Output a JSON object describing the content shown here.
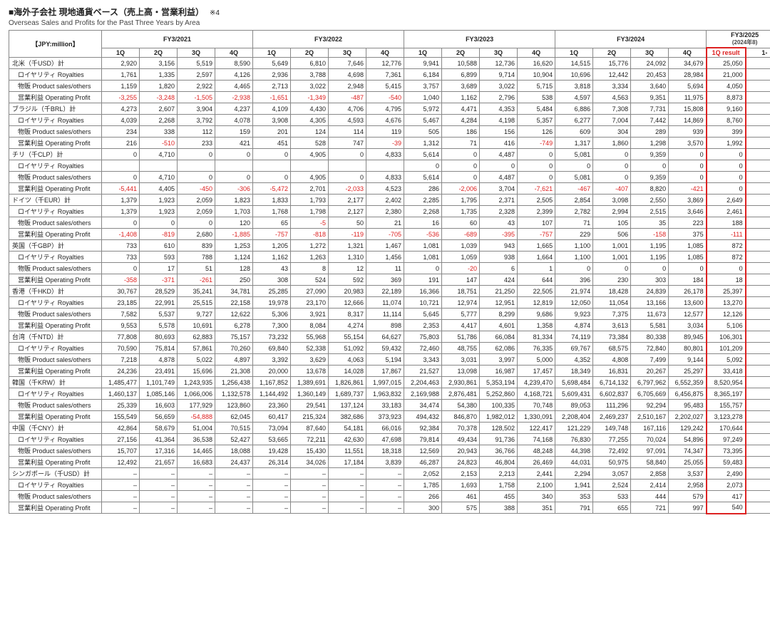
{
  "title_jp": "■海外子会社 現地通貨ベース（売上高・営業利益）",
  "title_note": "※4",
  "title_en": "Overseas Sales and Profits for the Past Three Years by Area",
  "unit_label": "【JPY:million】",
  "fy_headers": [
    "FY3/2021",
    "FY3/2022",
    "FY3/2023",
    "FY3/2024",
    "FY3/2025"
  ],
  "fy25_note": "(2024年8)",
  "q_headers": [
    "1Q",
    "2Q",
    "3Q",
    "4Q"
  ],
  "result_header": "1Q result",
  "extra_header": "1-",
  "row_labels": {
    "na_total": "北米（千USD）計",
    "royalties": "ロイヤリティ Royalties",
    "product": "物販 Product sales/others",
    "op": "営業利益 Operating Profit",
    "brazil_total": "ブラジル（千BRL）計",
    "chile_total": "チリ（千CLP）計",
    "germany_total": "ドイツ（千EUR）計",
    "uk_total": "英国（千GBP）計",
    "hk_total": "香港（千HKD）計",
    "tw_total": "台湾（千NTD）計",
    "kr_total": "韓国（千KRW）計",
    "cn_total": "中国（千CNY）計",
    "sg_total": "シンガポール（千USD）計"
  },
  "rows": [
    {
      "key": "na_total",
      "type": "label",
      "v": [
        "2,920",
        "3,156",
        "5,519",
        "8,590",
        "5,649",
        "6,810",
        "7,646",
        "12,776",
        "9,941",
        "10,588",
        "12,736",
        "16,620",
        "14,515",
        "15,776",
        "24,092",
        "34,679",
        "25,050"
      ]
    },
    {
      "key": "royalties",
      "type": "sub",
      "v": [
        "1,761",
        "1,335",
        "2,597",
        "4,126",
        "2,936",
        "3,788",
        "4,698",
        "7,361",
        "6,184",
        "6,899",
        "9,714",
        "10,904",
        "10,696",
        "12,442",
        "20,453",
        "28,984",
        "21,000"
      ]
    },
    {
      "key": "product",
      "type": "sub",
      "v": [
        "1,159",
        "1,820",
        "2,922",
        "4,465",
        "2,713",
        "3,022",
        "2,948",
        "5,415",
        "3,757",
        "3,689",
        "3,022",
        "5,715",
        "3,818",
        "3,334",
        "3,640",
        "5,694",
        "4,050"
      ]
    },
    {
      "key": "op",
      "type": "sub",
      "v": [
        "-3,255",
        "-3,248",
        "-1,505",
        "-2,938",
        "-1,651",
        "-1,349",
        "-487",
        "-540",
        "1,040",
        "1,162",
        "2,796",
        "538",
        "4,597",
        "4,563",
        "9,351",
        "11,975",
        "8,873"
      ]
    },
    {
      "key": "brazil_total",
      "type": "label",
      "v": [
        "4,273",
        "2,607",
        "3,904",
        "4,237",
        "4,109",
        "4,430",
        "4,706",
        "4,795",
        "5,972",
        "4,471",
        "4,353",
        "5,484",
        "6,886",
        "7,308",
        "7,731",
        "15,808",
        "9,160"
      ]
    },
    {
      "key": "royalties",
      "type": "sub",
      "v": [
        "4,039",
        "2,268",
        "3,792",
        "4,078",
        "3,908",
        "4,305",
        "4,593",
        "4,676",
        "5,467",
        "4,284",
        "4,198",
        "5,357",
        "6,277",
        "7,004",
        "7,442",
        "14,869",
        "8,760"
      ]
    },
    {
      "key": "product",
      "type": "sub",
      "v": [
        "234",
        "338",
        "112",
        "159",
        "201",
        "124",
        "114",
        "119",
        "505",
        "186",
        "156",
        "126",
        "609",
        "304",
        "289",
        "939",
        "399"
      ]
    },
    {
      "key": "op",
      "type": "sub",
      "v": [
        "216",
        "-510",
        "233",
        "421",
        "451",
        "528",
        "747",
        "-39",
        "1,312",
        "71",
        "416",
        "-749",
        "1,317",
        "1,860",
        "1,298",
        "3,570",
        "1,992"
      ]
    },
    {
      "key": "chile_total",
      "type": "label",
      "v": [
        "0",
        "4,710",
        "0",
        "0",
        "0",
        "4,905",
        "0",
        "4,833",
        "5,614",
        "0",
        "4,487",
        "0",
        "5,081",
        "0",
        "9,359",
        "0",
        "0"
      ]
    },
    {
      "key": "royalties",
      "type": "sub",
      "v": [
        "",
        "",
        "",
        "",
        "",
        "",
        "",
        "",
        "0",
        "0",
        "0",
        "0",
        "0",
        "0",
        "0",
        "0",
        "0"
      ]
    },
    {
      "key": "product",
      "type": "sub",
      "v": [
        "0",
        "4,710",
        "0",
        "0",
        "0",
        "4,905",
        "0",
        "4,833",
        "5,614",
        "0",
        "4,487",
        "0",
        "5,081",
        "0",
        "9,359",
        "0",
        "0"
      ]
    },
    {
      "key": "op",
      "type": "sub",
      "v": [
        "-5,441",
        "4,405",
        "-450",
        "-306",
        "-5,472",
        "2,701",
        "-2,033",
        "4,523",
        "286",
        "-2,006",
        "3,704",
        "-7,621",
        "-467",
        "-407",
        "8,820",
        "-421",
        "0"
      ]
    },
    {
      "key": "germany_total",
      "type": "label",
      "v": [
        "1,379",
        "1,923",
        "2,059",
        "1,823",
        "1,833",
        "1,793",
        "2,177",
        "2,402",
        "2,285",
        "1,795",
        "2,371",
        "2,505",
        "2,854",
        "3,098",
        "2,550",
        "3,869",
        "2,649"
      ]
    },
    {
      "key": "royalties",
      "type": "sub",
      "v": [
        "1,379",
        "1,923",
        "2,059",
        "1,703",
        "1,768",
        "1,798",
        "2,127",
        "2,380",
        "2,268",
        "1,735",
        "2,328",
        "2,399",
        "2,782",
        "2,994",
        "2,515",
        "3,646",
        "2,461"
      ]
    },
    {
      "key": "product",
      "type": "sub",
      "v": [
        "0",
        "0",
        "0",
        "120",
        "65",
        "-5",
        "50",
        "21",
        "16",
        "60",
        "43",
        "107",
        "71",
        "105",
        "35",
        "223",
        "188"
      ]
    },
    {
      "key": "op",
      "type": "sub",
      "v": [
        "-1,408",
        "-819",
        "2,680",
        "-1,885",
        "-757",
        "-818",
        "-119",
        "-705",
        "-536",
        "-689",
        "-395",
        "-757",
        "229",
        "506",
        "-158",
        "375",
        "-111"
      ]
    },
    {
      "key": "uk_total",
      "type": "label",
      "v": [
        "733",
        "610",
        "839",
        "1,253",
        "1,205",
        "1,272",
        "1,321",
        "1,467",
        "1,081",
        "1,039",
        "943",
        "1,665",
        "1,100",
        "1,001",
        "1,195",
        "1,085",
        "872"
      ]
    },
    {
      "key": "royalties",
      "type": "sub",
      "v": [
        "733",
        "593",
        "788",
        "1,124",
        "1,162",
        "1,263",
        "1,310",
        "1,456",
        "1,081",
        "1,059",
        "938",
        "1,664",
        "1,100",
        "1,001",
        "1,195",
        "1,085",
        "872"
      ]
    },
    {
      "key": "product",
      "type": "sub",
      "v": [
        "0",
        "17",
        "51",
        "128",
        "43",
        "8",
        "12",
        "11",
        "0",
        "-20",
        "6",
        "1",
        "0",
        "0",
        "0",
        "0",
        "0"
      ]
    },
    {
      "key": "op",
      "type": "sub",
      "v": [
        "-358",
        "-371",
        "-261",
        "250",
        "308",
        "524",
        "592",
        "369",
        "191",
        "147",
        "424",
        "644",
        "396",
        "230",
        "303",
        "184",
        "18"
      ]
    },
    {
      "key": "hk_total",
      "type": "label",
      "v": [
        "30,767",
        "28,529",
        "35,241",
        "34,781",
        "25,285",
        "27,090",
        "20,983",
        "22,189",
        "16,366",
        "18,751",
        "21,250",
        "22,505",
        "21,974",
        "18,428",
        "24,839",
        "26,178",
        "25,397"
      ]
    },
    {
      "key": "royalties",
      "type": "sub",
      "v": [
        "23,185",
        "22,991",
        "25,515",
        "22,158",
        "19,978",
        "23,170",
        "12,666",
        "11,074",
        "10,721",
        "12,974",
        "12,951",
        "12,819",
        "12,050",
        "11,054",
        "13,166",
        "13,600",
        "13,270"
      ]
    },
    {
      "key": "product",
      "type": "sub",
      "v": [
        "7,582",
        "5,537",
        "9,727",
        "12,622",
        "5,306",
        "3,921",
        "8,317",
        "11,114",
        "5,645",
        "5,777",
        "8,299",
        "9,686",
        "9,923",
        "7,375",
        "11,673",
        "12,577",
        "12,126"
      ]
    },
    {
      "key": "op",
      "type": "sub",
      "v": [
        "9,553",
        "5,578",
        "10,691",
        "6,278",
        "7,300",
        "8,084",
        "4,274",
        "898",
        "2,353",
        "4,417",
        "4,601",
        "1,358",
        "4,874",
        "3,613",
        "5,581",
        "3,034",
        "5,106"
      ]
    },
    {
      "key": "tw_total",
      "type": "label",
      "v": [
        "77,808",
        "80,693",
        "62,883",
        "75,157",
        "73,232",
        "55,968",
        "55,154",
        "64,627",
        "75,803",
        "51,786",
        "66,084",
        "81,334",
        "74,119",
        "73,384",
        "80,338",
        "89,945",
        "106,301"
      ]
    },
    {
      "key": "royalties",
      "type": "sub",
      "v": [
        "70,590",
        "75,814",
        "57,861",
        "70,260",
        "69,840",
        "52,338",
        "51,092",
        "59,432",
        "72,460",
        "48,755",
        "62,086",
        "76,335",
        "69,767",
        "68,575",
        "72,840",
        "80,801",
        "101,209"
      ]
    },
    {
      "key": "product",
      "type": "sub",
      "v": [
        "7,218",
        "4,878",
        "5,022",
        "4,897",
        "3,392",
        "3,629",
        "4,063",
        "5,194",
        "3,343",
        "3,031",
        "3,997",
        "5,000",
        "4,352",
        "4,808",
        "7,499",
        "9,144",
        "5,092"
      ]
    },
    {
      "key": "op",
      "type": "sub",
      "v": [
        "24,236",
        "23,491",
        "15,696",
        "21,308",
        "20,000",
        "13,678",
        "14,028",
        "17,867",
        "21,527",
        "13,098",
        "16,987",
        "17,457",
        "18,349",
        "16,831",
        "20,267",
        "25,297",
        "33,418"
      ]
    },
    {
      "key": "kr_total",
      "type": "label",
      "v": [
        "1,485,477",
        "1,101,749",
        "1,243,935",
        "1,256,438",
        "1,167,852",
        "1,389,691",
        "1,826,861",
        "1,997,015",
        "2,204,463",
        "2,930,861",
        "5,353,194",
        "4,239,470",
        "5,698,484",
        "6,714,132",
        "6,797,962",
        "6,552,359",
        "8,520,954"
      ]
    },
    {
      "key": "royalties",
      "type": "sub",
      "v": [
        "1,460,137",
        "1,085,146",
        "1,066,006",
        "1,132,578",
        "1,144,492",
        "1,360,149",
        "1,689,737",
        "1,963,832",
        "2,169,988",
        "2,876,481",
        "5,252,860",
        "4,168,721",
        "5,609,431",
        "6,602,837",
        "6,705,669",
        "6,456,875",
        "8,365,197"
      ]
    },
    {
      "key": "product",
      "type": "sub",
      "v": [
        "25,339",
        "16,603",
        "177,929",
        "123,860",
        "23,360",
        "29,541",
        "137,124",
        "33,183",
        "34,474",
        "54,380",
        "100,335",
        "70,748",
        "89,053",
        "111,296",
        "92,294",
        "95,483",
        "155,757"
      ]
    },
    {
      "key": "op",
      "type": "sub",
      "v": [
        "155,549",
        "56,659",
        "-54,888",
        "62,045",
        "60,417",
        "215,324",
        "382,686",
        "373,923",
        "494,432",
        "846,870",
        "1,982,012",
        "1,330,091",
        "2,208,404",
        "2,469,237",
        "2,510,167",
        "2,202,027",
        "3,123,278"
      ]
    },
    {
      "key": "cn_total",
      "type": "label",
      "v": [
        "42,864",
        "58,679",
        "51,004",
        "70,515",
        "73,094",
        "87,640",
        "54,181",
        "66,016",
        "92,384",
        "70,378",
        "128,502",
        "122,417",
        "121,229",
        "149,748",
        "167,116",
        "129,242",
        "170,644"
      ]
    },
    {
      "key": "royalties",
      "type": "sub",
      "v": [
        "27,156",
        "41,364",
        "36,538",
        "52,427",
        "53,665",
        "72,211",
        "42,630",
        "47,698",
        "79,814",
        "49,434",
        "91,736",
        "74,168",
        "76,830",
        "77,255",
        "70,024",
        "54,896",
        "97,249"
      ]
    },
    {
      "key": "product",
      "type": "sub",
      "v": [
        "15,707",
        "17,316",
        "14,465",
        "18,088",
        "19,428",
        "15,430",
        "11,551",
        "18,318",
        "12,569",
        "20,943",
        "36,766",
        "48,248",
        "44,398",
        "72,492",
        "97,091",
        "74,347",
        "73,395"
      ]
    },
    {
      "key": "op",
      "type": "sub",
      "v": [
        "12,492",
        "21,657",
        "16,683",
        "24,437",
        "26,314",
        "34,026",
        "17,184",
        "3,839",
        "46,287",
        "24,823",
        "46,804",
        "26,469",
        "44,031",
        "50,975",
        "58,840",
        "25,055",
        "59,483"
      ]
    },
    {
      "key": "sg_total",
      "type": "label",
      "v": [
        "–",
        "–",
        "–",
        "–",
        "–",
        "–",
        "–",
        "–",
        "2,052",
        "2,153",
        "2,213",
        "2,441",
        "2,294",
        "3,057",
        "2,858",
        "3,537",
        "2,490"
      ]
    },
    {
      "key": "royalties",
      "type": "sub",
      "v": [
        "–",
        "–",
        "–",
        "–",
        "–",
        "–",
        "–",
        "–",
        "1,785",
        "1,693",
        "1,758",
        "2,100",
        "1,941",
        "2,524",
        "2,414",
        "2,958",
        "2,073"
      ]
    },
    {
      "key": "product",
      "type": "sub",
      "v": [
        "–",
        "–",
        "–",
        "–",
        "–",
        "–",
        "–",
        "–",
        "266",
        "461",
        "455",
        "340",
        "353",
        "533",
        "444",
        "579",
        "417"
      ]
    },
    {
      "key": "op",
      "type": "sub",
      "v": [
        "–",
        "–",
        "–",
        "–",
        "–",
        "–",
        "–",
        "–",
        "300",
        "575",
        "388",
        "351",
        "791",
        "655",
        "721",
        "997",
        "540"
      ]
    }
  ]
}
